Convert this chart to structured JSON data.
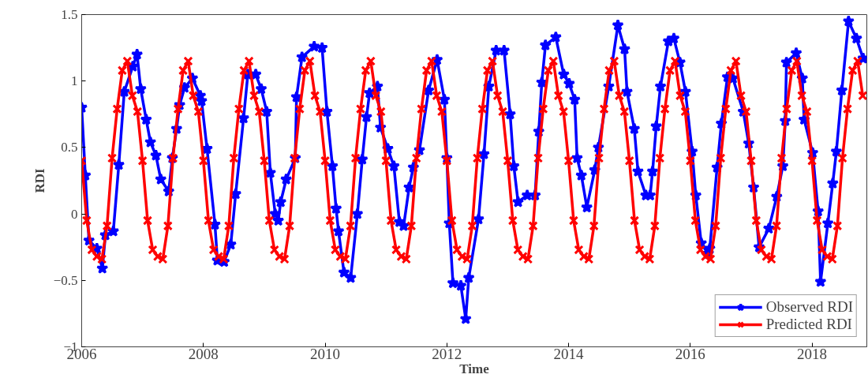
{
  "chart_data": {
    "type": "line",
    "xlabel": "Time",
    "ylabel": "RDI",
    "xlim": [
      2006,
      2018.9
    ],
    "xticks": [
      2006,
      2008,
      2010,
      2012,
      2014,
      2016,
      2018
    ],
    "ylim": [
      -1,
      1.5
    ],
    "yticks": [
      -1,
      -0.5,
      0,
      0.5,
      1,
      1.5
    ],
    "grid": false,
    "legend": "bottom right",
    "line_style": "solid",
    "series": [
      {
        "name": "Observed RDI",
        "color": "#0000ff",
        "marker": "star",
        "x": [
          2006.0,
          2006.06,
          2006.12,
          2006.25,
          2006.34,
          2006.39,
          2006.52,
          2006.61,
          2006.7,
          2006.84,
          2006.91,
          2006.97,
          2007.06,
          2007.13,
          2007.22,
          2007.3,
          2007.43,
          2007.49,
          2007.56,
          2007.61,
          2007.69,
          2007.82,
          2007.95,
          2007.97,
          2008.06,
          2008.19,
          2008.23,
          2008.34,
          2008.45,
          2008.53,
          2008.66,
          2008.73,
          2008.86,
          2008.95,
          2009.04,
          2009.1,
          2009.18,
          2009.23,
          2009.27,
          2009.36,
          2009.51,
          2009.53,
          2009.62,
          2009.82,
          2009.95,
          2010.03,
          2010.12,
          2010.18,
          2010.22,
          2010.31,
          2010.42,
          2010.53,
          2010.61,
          2010.68,
          2010.73,
          2010.86,
          2010.91,
          2011.03,
          2011.13,
          2011.22,
          2011.29,
          2011.38,
          2011.45,
          2011.55,
          2011.7,
          2011.84,
          2011.96,
          2012.0,
          2012.04,
          2012.1,
          2012.23,
          2012.31,
          2012.36,
          2012.52,
          2012.61,
          2012.69,
          2012.81,
          2012.94,
          2013.04,
          2013.1,
          2013.17,
          2013.32,
          2013.45,
          2013.51,
          2013.56,
          2013.62,
          2013.79,
          2013.92,
          2014.01,
          2014.1,
          2014.14,
          2014.21,
          2014.3,
          2014.43,
          2014.49,
          2014.66,
          2014.81,
          2014.92,
          2014.96,
          2015.08,
          2015.14,
          2015.27,
          2015.34,
          2015.38,
          2015.44,
          2015.51,
          2015.64,
          2015.73,
          2015.83,
          2015.92,
          2016.03,
          2016.09,
          2016.18,
          2016.29,
          2016.32,
          2016.44,
          2016.51,
          2016.61,
          2016.7,
          2016.87,
          2016.96,
          2017.04,
          2017.13,
          2017.29,
          2017.42,
          2017.52,
          2017.56,
          2017.58,
          2017.74,
          2017.84,
          2017.87,
          2018.01,
          2018.1,
          2018.14,
          2018.26,
          2018.34,
          2018.4,
          2018.49,
          2018.6,
          2018.73,
          2018.84
        ],
        "values": [
          0.8,
          0.29,
          -0.2,
          -0.26,
          -0.41,
          -0.16,
          -0.13,
          0.37,
          0.92,
          1.11,
          1.2,
          0.94,
          0.71,
          0.54,
          0.44,
          0.26,
          0.17,
          0.42,
          0.64,
          0.82,
          0.95,
          1.02,
          0.89,
          0.85,
          0.49,
          -0.08,
          -0.35,
          -0.36,
          -0.23,
          0.15,
          0.72,
          1.05,
          1.05,
          0.94,
          0.77,
          0.31,
          0.0,
          -0.05,
          0.09,
          0.26,
          0.42,
          0.88,
          1.18,
          1.26,
          1.25,
          0.77,
          0.36,
          0.04,
          -0.13,
          -0.44,
          -0.48,
          0.0,
          0.41,
          0.73,
          0.91,
          0.96,
          0.65,
          0.49,
          0.36,
          -0.06,
          -0.09,
          0.2,
          0.35,
          0.48,
          0.93,
          1.16,
          0.86,
          0.42,
          -0.07,
          -0.52,
          -0.54,
          -0.79,
          -0.48,
          -0.04,
          0.45,
          0.96,
          1.23,
          1.23,
          0.75,
          0.36,
          0.09,
          0.14,
          0.14,
          0.62,
          0.99,
          1.27,
          1.33,
          1.05,
          0.98,
          0.86,
          0.42,
          0.29,
          0.05,
          0.33,
          0.5,
          0.96,
          1.42,
          1.24,
          0.92,
          0.64,
          0.32,
          0.14,
          0.14,
          0.32,
          0.66,
          0.96,
          1.3,
          1.32,
          1.14,
          0.92,
          0.47,
          0.14,
          -0.22,
          -0.3,
          -0.26,
          0.35,
          0.68,
          1.03,
          1.02,
          0.77,
          0.53,
          0.2,
          -0.25,
          -0.11,
          0.13,
          0.36,
          0.7,
          1.14,
          1.21,
          1.02,
          0.71,
          0.46,
          0.02,
          -0.51,
          -0.07,
          0.23,
          0.47,
          0.93,
          1.45,
          1.32,
          1.17
        ]
      },
      {
        "name": "Predicted RDI",
        "color": "#ff0000",
        "marker": "cross",
        "x": [
          2006.0,
          2006.083,
          2006.167,
          2006.25,
          2006.333,
          2006.417,
          2006.5,
          2006.583,
          2006.667,
          2006.75,
          2006.833,
          2006.917,
          2007.0,
          2007.083,
          2007.167,
          2007.25,
          2007.333,
          2007.417,
          2007.5,
          2007.583,
          2007.667,
          2007.75,
          2007.833,
          2007.917,
          2008.0,
          2008.083,
          2008.167,
          2008.25,
          2008.333,
          2008.417,
          2008.5,
          2008.583,
          2008.667,
          2008.75,
          2008.833,
          2008.917,
          2009.0,
          2009.083,
          2009.167,
          2009.25,
          2009.333,
          2009.417,
          2009.5,
          2009.583,
          2009.667,
          2009.75,
          2009.833,
          2009.917,
          2010.0,
          2010.083,
          2010.167,
          2010.25,
          2010.333,
          2010.417,
          2010.5,
          2010.583,
          2010.667,
          2010.75,
          2010.833,
          2010.917,
          2011.0,
          2011.083,
          2011.167,
          2011.25,
          2011.333,
          2011.417,
          2011.5,
          2011.583,
          2011.667,
          2011.75,
          2011.833,
          2011.917,
          2012.0,
          2012.083,
          2012.167,
          2012.25,
          2012.333,
          2012.417,
          2012.5,
          2012.583,
          2012.667,
          2012.75,
          2012.833,
          2012.917,
          2013.0,
          2013.083,
          2013.167,
          2013.25,
          2013.333,
          2013.417,
          2013.5,
          2013.583,
          2013.667,
          2013.75,
          2013.833,
          2013.917,
          2014.0,
          2014.083,
          2014.167,
          2014.25,
          2014.333,
          2014.417,
          2014.5,
          2014.583,
          2014.667,
          2014.75,
          2014.833,
          2014.917,
          2015.0,
          2015.083,
          2015.167,
          2015.25,
          2015.333,
          2015.417,
          2015.5,
          2015.583,
          2015.667,
          2015.75,
          2015.833,
          2015.917,
          2016.0,
          2016.083,
          2016.167,
          2016.25,
          2016.333,
          2016.417,
          2016.5,
          2016.583,
          2016.667,
          2016.75,
          2016.833,
          2016.917,
          2017.0,
          2017.083,
          2017.167,
          2017.25,
          2017.333,
          2017.417,
          2017.5,
          2017.583,
          2017.667,
          2017.75,
          2017.833,
          2017.917,
          2018.0,
          2018.083,
          2018.167,
          2018.25,
          2018.333,
          2018.417,
          2018.5,
          2018.583,
          2018.667,
          2018.75,
          2018.833
        ],
        "values": [
          0.4,
          -0.05,
          -0.27,
          -0.32,
          -0.34,
          -0.09,
          0.42,
          0.79,
          1.08,
          1.15,
          0.89,
          0.77,
          0.4,
          -0.05,
          -0.27,
          -0.32,
          -0.34,
          -0.09,
          0.42,
          0.79,
          1.08,
          1.15,
          0.89,
          0.77,
          0.4,
          -0.05,
          -0.27,
          -0.32,
          -0.34,
          -0.09,
          0.42,
          0.79,
          1.08,
          1.15,
          0.89,
          0.77,
          0.4,
          -0.05,
          -0.27,
          -0.32,
          -0.34,
          -0.09,
          0.42,
          0.79,
          1.08,
          1.15,
          0.89,
          0.77,
          0.4,
          -0.05,
          -0.27,
          -0.32,
          -0.34,
          -0.09,
          0.42,
          0.79,
          1.08,
          1.15,
          0.89,
          0.77,
          0.4,
          -0.05,
          -0.27,
          -0.32,
          -0.34,
          -0.09,
          0.42,
          0.79,
          1.08,
          1.15,
          0.89,
          0.77,
          0.4,
          -0.05,
          -0.27,
          -0.32,
          -0.34,
          -0.09,
          0.42,
          0.79,
          1.08,
          1.15,
          0.89,
          0.77,
          0.4,
          -0.05,
          -0.27,
          -0.32,
          -0.34,
          -0.09,
          0.42,
          0.79,
          1.08,
          1.15,
          0.89,
          0.77,
          0.4,
          -0.05,
          -0.27,
          -0.32,
          -0.34,
          -0.09,
          0.42,
          0.79,
          1.08,
          1.15,
          0.89,
          0.77,
          0.4,
          -0.05,
          -0.27,
          -0.32,
          -0.34,
          -0.09,
          0.42,
          0.79,
          1.08,
          1.15,
          0.89,
          0.77,
          0.4,
          -0.05,
          -0.27,
          -0.32,
          -0.34,
          -0.09,
          0.42,
          0.79,
          1.08,
          1.15,
          0.89,
          0.77,
          0.4,
          -0.05,
          -0.27,
          -0.32,
          -0.34,
          -0.09,
          0.42,
          0.79,
          1.08,
          1.15,
          0.89,
          0.77,
          0.4,
          -0.05,
          -0.27,
          -0.32,
          -0.34,
          -0.09,
          0.42,
          0.79,
          1.08,
          1.15,
          0.89
        ]
      }
    ]
  }
}
